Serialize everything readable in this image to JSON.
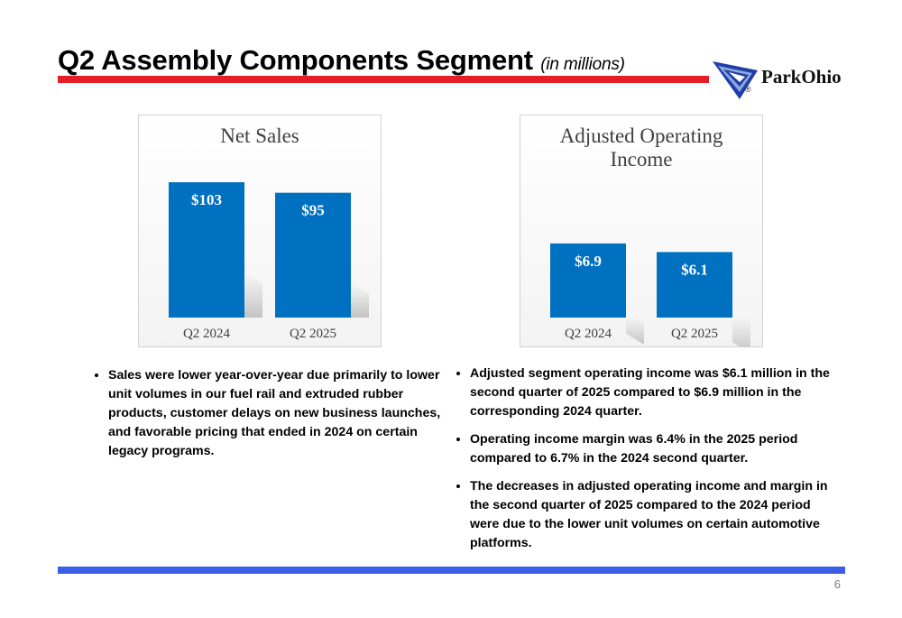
{
  "header": {
    "title": "Q2 Assembly Components Segment",
    "subtitle": "(in millions)",
    "logo_text": "ParkOhio",
    "logo_reg": "®"
  },
  "colors": {
    "title_bar": "#e41e26",
    "footer_bar": "#3a5fe6",
    "bar_fill": "#0070c0",
    "logo_blue": "#1f3fa8"
  },
  "chart_data": [
    {
      "type": "bar",
      "title": "Net Sales",
      "categories": [
        "Q2 2024",
        "Q2 2025"
      ],
      "values": [
        103,
        95
      ],
      "labels": [
        "$103",
        "$95"
      ],
      "ylim": [
        0,
        103
      ],
      "grid": false
    },
    {
      "type": "bar",
      "title": "Adjusted Operating Income",
      "categories": [
        "Q2 2024",
        "Q2 2025"
      ],
      "values": [
        6.9,
        6.1
      ],
      "labels": [
        "$6.9",
        "$6.1"
      ],
      "ylim": [
        0,
        12.6
      ],
      "grid": false
    }
  ],
  "bullets_left": [
    "Sales were lower year-over-year due primarily to lower unit volumes in our fuel rail and extruded rubber products, customer delays on new business launches, and favorable pricing that ended in 2024 on certain legacy programs."
  ],
  "bullets_right": [
    "Adjusted segment operating income was $6.1 million in the second quarter of 2025 compared to $6.9 million in the corresponding 2024 quarter.",
    "Operating income margin was 6.4% in the 2025 period compared to 6.7% in the 2024 second quarter.",
    "The decreases in adjusted operating income and margin in the second quarter of 2025 compared to the 2024 period were due to the lower unit volumes on certain automotive platforms."
  ],
  "footer": {
    "page_number": "6"
  }
}
